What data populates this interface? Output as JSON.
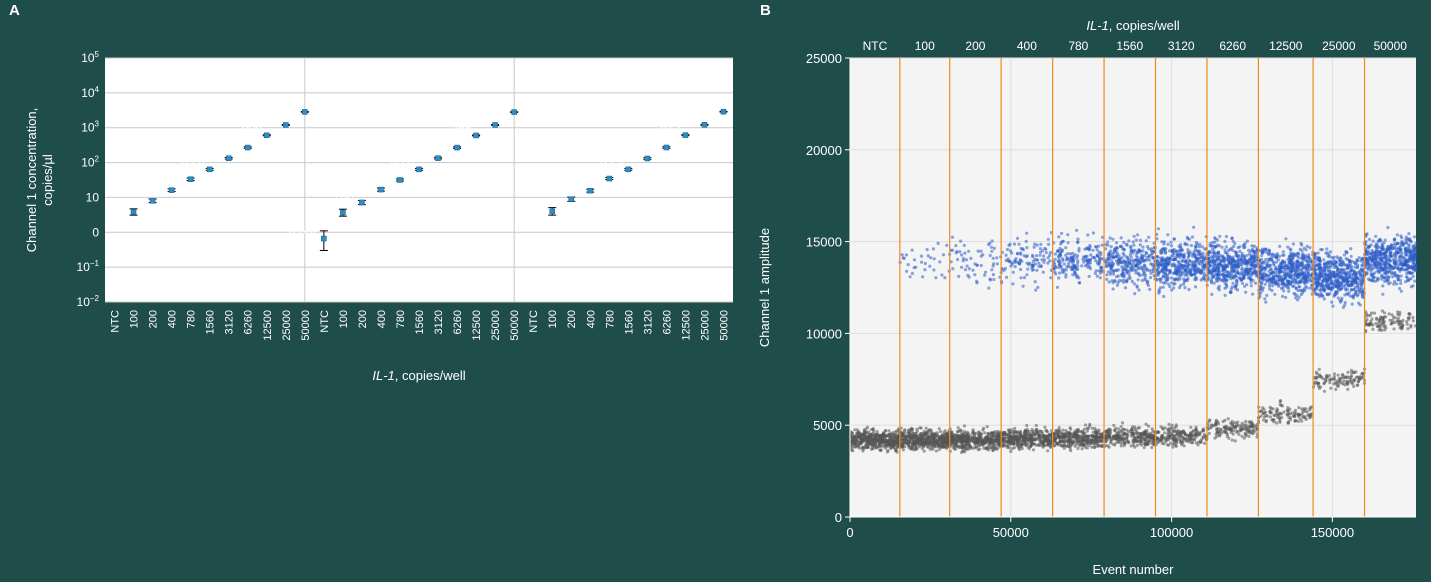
{
  "panel_labels": {
    "a": "A",
    "b": "B"
  },
  "colors": {
    "background": "#1f4d4a",
    "plot_bg": "#ffffff",
    "plot_b_bg": "#f4f4f4",
    "marker": "#2a8fc4",
    "blue_cluster": "#2c5cc8",
    "gray_cluster": "#555555",
    "separator": "#f08a1e"
  },
  "chart_data": [
    {
      "type": "scatter",
      "panel": "A",
      "xlabel_italic": "IL-1",
      "xlabel_rest": ", copies/well",
      "ylabel_line1": "Channel 1 concentration,",
      "ylabel_line2": "copies/µl",
      "y_scale": "log",
      "ylim": [
        0.01,
        100000
      ],
      "grid": true,
      "y_ticks": [
        {
          "value": 0.01,
          "base": "10",
          "exp": "−2"
        },
        {
          "value": 0.1,
          "base": "10",
          "exp": "−1"
        },
        {
          "value": 1,
          "base": "0",
          "exp": ""
        },
        {
          "value": 10,
          "base": "10",
          "exp": ""
        },
        {
          "value": 100,
          "base": "10",
          "exp": "2"
        },
        {
          "value": 1000,
          "base": "10",
          "exp": "3"
        },
        {
          "value": 10000,
          "base": "10",
          "exp": "4"
        },
        {
          "value": 100000,
          "base": "10",
          "exp": "5"
        }
      ],
      "categories": [
        "NTC",
        "100",
        "200",
        "400",
        "780",
        "1560",
        "3120",
        "6260",
        "12500",
        "25000",
        "50000",
        "NTC",
        "100",
        "200",
        "400",
        "780",
        "1560",
        "3120",
        "6260",
        "12500",
        "25000",
        "50000",
        "NTC",
        "100",
        "200",
        "400",
        "780",
        "1560",
        "3120",
        "6260",
        "12500",
        "25000",
        "50000"
      ],
      "values": [
        null,
        3.83,
        8.01,
        16.2,
        33.3,
        63.8,
        133,
        270,
        606,
        1200,
        2840,
        0.662,
        3.68,
        7.17,
        16.8,
        31.7,
        63.8,
        134,
        269,
        599,
        1200,
        2810,
        null,
        3.99,
        8.9,
        15.6,
        34.8,
        63.9,
        131,
        271,
        613,
        1210,
        2880
      ],
      "point_labels": [
        "",
        "3.83",
        "8.01",
        "16.2",
        "33.3",
        "63.8",
        "133",
        "270",
        "606",
        "1200",
        "2840",
        "0.662",
        "3.68",
        "7.17",
        "16.8",
        "31.7",
        "63.8",
        "134",
        "269",
        "599",
        "1200",
        "2810",
        "",
        "3.99",
        "8.9",
        "15.6",
        "34.8",
        "63.9",
        "131",
        "271",
        "613",
        "1210",
        "2880"
      ],
      "error_ranges": [
        null,
        [
          3.1,
          4.7
        ],
        [
          7.1,
          9.0
        ],
        [
          14.8,
          17.6
        ],
        [
          30.5,
          36.2
        ],
        [
          60,
          68
        ],
        [
          126,
          140
        ],
        [
          258,
          283
        ],
        [
          585,
          628
        ],
        [
          1165,
          1235
        ],
        [
          2780,
          2900
        ],
        [
          0.3,
          1.1
        ],
        [
          2.9,
          4.6
        ],
        [
          6.2,
          8.2
        ],
        [
          15.2,
          18.6
        ],
        [
          29.5,
          34
        ],
        [
          60,
          68
        ],
        [
          127,
          141
        ],
        [
          256,
          282
        ],
        [
          580,
          618
        ],
        [
          1165,
          1235
        ],
        [
          2750,
          2870
        ],
        null,
        [
          3.1,
          5.1
        ],
        [
          7.7,
          10.2
        ],
        [
          14.2,
          17.2
        ],
        [
          32.5,
          37.2
        ],
        [
          60,
          68
        ],
        [
          124,
          138
        ],
        [
          258,
          284
        ],
        [
          592,
          634
        ],
        [
          1175,
          1245
        ],
        [
          2820,
          2940
        ]
      ]
    },
    {
      "type": "scatter",
      "panel": "B",
      "title_italic": "IL-1",
      "title_rest": ", copies/well",
      "xlabel": "Event number",
      "ylabel": "Channel 1 amplitude",
      "xlim": [
        0,
        176000
      ],
      "ylim": [
        0,
        25000
      ],
      "x_ticks": [
        0,
        50000,
        100000,
        150000
      ],
      "y_ticks": [
        0,
        5000,
        10000,
        15000,
        20000,
        25000
      ],
      "grid": true,
      "segment_labels": [
        "NTC",
        "100",
        "200",
        "400",
        "780",
        "1560",
        "3120",
        "6260",
        "12500",
        "25000",
        "50000"
      ],
      "segment_boundaries": [
        0,
        15500,
        31000,
        47000,
        63000,
        79000,
        95000,
        111000,
        127000,
        144000,
        160000,
        176000
      ],
      "segments": [
        {
          "negative_amp": 4200,
          "positive_amp": null,
          "positive_density": 0.0
        },
        {
          "negative_amp": 4200,
          "positive_amp": 13800,
          "positive_density": 0.05
        },
        {
          "negative_amp": 4200,
          "positive_amp": 14000,
          "positive_density": 0.1
        },
        {
          "negative_amp": 4250,
          "positive_amp": 14000,
          "positive_density": 0.2
        },
        {
          "negative_amp": 4300,
          "positive_amp": 14000,
          "positive_density": 0.35
        },
        {
          "negative_amp": 4350,
          "positive_amp": 13900,
          "positive_density": 0.55
        },
        {
          "negative_amp": 4400,
          "positive_amp": 13800,
          "positive_density": 0.75
        },
        {
          "negative_amp": 4800,
          "positive_amp": 13700,
          "positive_density": 0.9
        },
        {
          "negative_amp": 5600,
          "positive_amp": 13400,
          "positive_density": 0.97
        },
        {
          "negative_amp": 7500,
          "positive_amp": 13100,
          "positive_density": 0.99
        },
        {
          "negative_amp": 10700,
          "positive_amp": 14000,
          "positive_density": 1.0
        }
      ]
    }
  ]
}
